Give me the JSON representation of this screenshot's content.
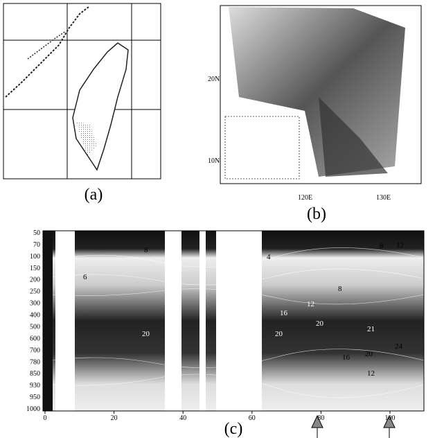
{
  "panels": {
    "a": {
      "label": "(a)"
    },
    "b": {
      "label": "(b)",
      "lat_labels": [
        "20N",
        "10N"
      ],
      "lon_labels": [
        "120E",
        "130E"
      ]
    },
    "c": {
      "label": "(c)",
      "y_labels": [
        "50",
        "70",
        "100",
        "150",
        "200",
        "250",
        "300",
        "400",
        "500",
        "600",
        "700",
        "780",
        "850",
        "930",
        "950",
        "1000"
      ],
      "x_ticks": [
        0,
        20,
        40,
        60,
        80,
        100
      ],
      "contour_labels": [
        "8",
        "12",
        "4",
        "6",
        "8",
        "8",
        "12",
        "16",
        "20",
        "20",
        "20",
        "21",
        "16",
        "20",
        "24",
        "12"
      ]
    }
  }
}
